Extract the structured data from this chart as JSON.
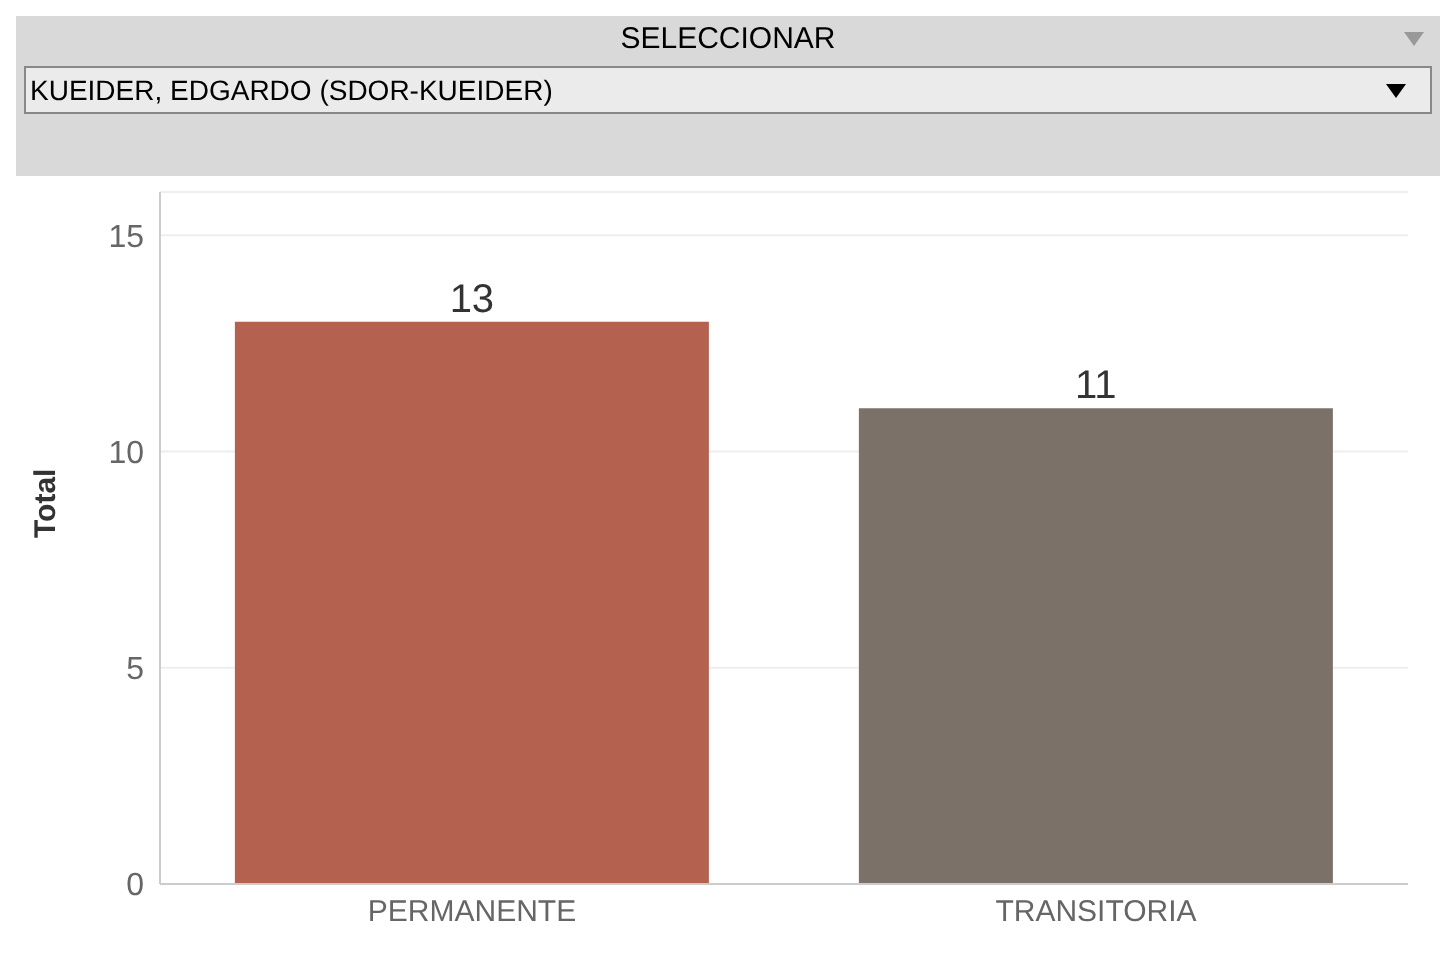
{
  "chart_data": {
    "type": "bar",
    "ylabel": "Total",
    "annotations": [
      "SELECCIONAR",
      "KUEIDER, EDGARDO (SDOR-KUEIDER)"
    ],
    "categories": [
      "PERMANENTE",
      "TRANSITORIA"
    ],
    "values": [
      13,
      11
    ],
    "colors": [
      "#b5614f",
      "#7b7169"
    ],
    "ylim": [
      0,
      16
    ],
    "yticks": [
      0,
      5,
      10,
      15
    ],
    "grid": "y",
    "data_labels": true
  }
}
